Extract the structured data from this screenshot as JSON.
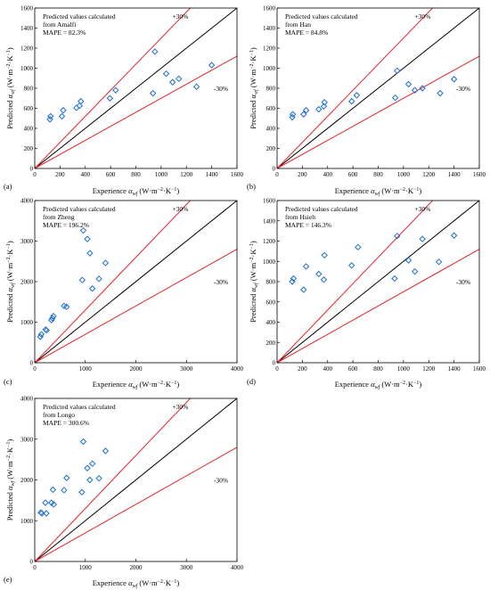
{
  "chart_data": [
    {
      "type": "scatter",
      "panel_label": "(a)",
      "annotation_lines": [
        "Predicted values calculated",
        "from Amalfi",
        "MAPE = 82.3%"
      ],
      "xlabel": {
        "prefix": "Experience ",
        "symbol": "α",
        "sub": "wf",
        "units": " (W·m",
        "exp1": "−2",
        "mid": "·K",
        "exp2": "−1",
        "close": ")"
      },
      "ylabel": {
        "prefix": "Predicted ",
        "symbol": "α",
        "sub": "wf",
        "units": " (W·m",
        "exp1": "−2",
        "mid": "·K",
        "exp2": "−1",
        "close": ")"
      },
      "xlim": [
        0,
        1600
      ],
      "ylim": [
        0,
        1600
      ],
      "xticks": [
        0,
        200,
        400,
        600,
        800,
        1000,
        1200,
        1400,
        1600
      ],
      "yticks": [
        0,
        200,
        400,
        600,
        800,
        1000,
        1200,
        1400,
        1600
      ],
      "reference_lines": [
        "+30%",
        "-30%"
      ],
      "points": [
        [
          120,
          490
        ],
        [
          125,
          520
        ],
        [
          215,
          520
        ],
        [
          225,
          580
        ],
        [
          330,
          605
        ],
        [
          355,
          625
        ],
        [
          365,
          670
        ],
        [
          595,
          700
        ],
        [
          640,
          780
        ],
        [
          935,
          750
        ],
        [
          950,
          1165
        ],
        [
          1040,
          945
        ],
        [
          1090,
          860
        ],
        [
          1140,
          895
        ],
        [
          1280,
          815
        ],
        [
          1400,
          1030
        ]
      ]
    },
    {
      "type": "scatter",
      "panel_label": "(b)",
      "annotation_lines": [
        "Predicted values calculated",
        "from Han",
        "MAPE = 84.8%"
      ],
      "xlabel": {
        "prefix": "Experience ",
        "symbol": "α",
        "sub": "wf",
        "units": " (W·m",
        "exp1": "−2",
        "mid": "·K",
        "exp2": "−1",
        "close": ")"
      },
      "ylabel": {
        "prefix": "Predicted ",
        "symbol": "α",
        "sub": "wf",
        "units": " (W·m",
        "exp1": "−2",
        "mid": "·K",
        "exp2": "−1",
        "close": ")"
      },
      "xlim": [
        0,
        1600
      ],
      "ylim": [
        0,
        1600
      ],
      "xticks": [
        0,
        200,
        400,
        600,
        800,
        1000,
        1200,
        1400,
        1600
      ],
      "yticks": [
        0,
        200,
        400,
        600,
        800,
        1000,
        1200,
        1400,
        1600
      ],
      "reference_lines": [
        "+30%",
        "-30%"
      ],
      "points": [
        [
          120,
          510
        ],
        [
          125,
          540
        ],
        [
          210,
          540
        ],
        [
          230,
          580
        ],
        [
          330,
          590
        ],
        [
          370,
          620
        ],
        [
          375,
          660
        ],
        [
          590,
          670
        ],
        [
          630,
          730
        ],
        [
          935,
          705
        ],
        [
          950,
          975
        ],
        [
          1040,
          840
        ],
        [
          1090,
          780
        ],
        [
          1150,
          800
        ],
        [
          1290,
          750
        ],
        [
          1400,
          890
        ]
      ]
    },
    {
      "type": "scatter",
      "panel_label": "(c)",
      "annotation_lines": [
        "Predicted values calculated",
        "from Zheng",
        "MAPE = 196.2%"
      ],
      "xlabel": {
        "prefix": "Experience ",
        "symbol": "α",
        "sub": "wf",
        "units": " (W·m",
        "exp1": "−2",
        "mid": "·K",
        "exp2": "−1",
        "close": ")"
      },
      "ylabel": {
        "prefix": "Predicted ",
        "symbol": "α",
        "sub": "wf",
        "units": " (W·m",
        "exp1": "−2",
        "mid": "·K",
        "exp2": "−1",
        "close": ")"
      },
      "xlim": [
        0,
        4000
      ],
      "ylim": [
        0,
        4000
      ],
      "xticks": [
        0,
        1000,
        2000,
        3000,
        4000
      ],
      "yticks": [
        0,
        1000,
        2000,
        3000,
        4000
      ],
      "reference_lines": [
        "+30%",
        "-30%"
      ],
      "points": [
        [
          110,
          640
        ],
        [
          130,
          700
        ],
        [
          215,
          820
        ],
        [
          235,
          800
        ],
        [
          330,
          1050
        ],
        [
          350,
          1100
        ],
        [
          370,
          1150
        ],
        [
          580,
          1400
        ],
        [
          630,
          1380
        ],
        [
          940,
          2040
        ],
        [
          960,
          3260
        ],
        [
          1040,
          3050
        ],
        [
          1090,
          2700
        ],
        [
          1140,
          1830
        ],
        [
          1270,
          2070
        ],
        [
          1400,
          2460
        ]
      ]
    },
    {
      "type": "scatter",
      "panel_label": "(d)",
      "annotation_lines": [
        "Predicted values calculated",
        "from Hsieh",
        "MAPE = 146.3%"
      ],
      "xlabel": {
        "prefix": "Experience ",
        "symbol": "α",
        "sub": "wf",
        "units": " (W·m",
        "exp1": "−2",
        "mid": "·K",
        "exp2": "−1",
        "close": ")"
      },
      "ylabel": {
        "prefix": "Predicted ",
        "symbol": "α",
        "sub": "wf",
        "units": " (W·m",
        "exp1": "−2",
        "mid": "·K",
        "exp2": "−1",
        "close": ")"
      },
      "xlim": [
        0,
        1600
      ],
      "ylim": [
        0,
        1600
      ],
      "xticks": [
        0,
        200,
        400,
        600,
        800,
        1000,
        1200,
        1400,
        1600
      ],
      "yticks": [
        0,
        200,
        400,
        600,
        800,
        1000,
        1200,
        1400,
        1600
      ],
      "reference_lines": [
        "+30%",
        "-30%"
      ],
      "points": [
        [
          120,
          800
        ],
        [
          130,
          830
        ],
        [
          210,
          720
        ],
        [
          230,
          950
        ],
        [
          330,
          875
        ],
        [
          370,
          820
        ],
        [
          375,
          1060
        ],
        [
          590,
          960
        ],
        [
          640,
          1140
        ],
        [
          930,
          830
        ],
        [
          950,
          1250
        ],
        [
          1040,
          1010
        ],
        [
          1090,
          900
        ],
        [
          1150,
          1220
        ],
        [
          1280,
          995
        ],
        [
          1400,
          1255
        ]
      ]
    },
    {
      "type": "scatter",
      "panel_label": "(e)",
      "annotation_lines": [
        "Predicted values calculated",
        "from  Longo",
        "MAPE = 300.6%"
      ],
      "xlabel": {
        "prefix": "Experience ",
        "symbol": "α",
        "sub": "wf",
        "units": " (W·m",
        "exp1": "−2",
        "mid": "·K",
        "exp2": "−1",
        "close": ")"
      },
      "ylabel": {
        "prefix": "Predicted ",
        "symbol": "α",
        "sub": "wf",
        "units": " (W·m",
        "exp1": "−2",
        "mid": "·K",
        "exp2": "−1",
        "close": ")"
      },
      "xlim": [
        0,
        4000
      ],
      "ylim": [
        0,
        4000
      ],
      "xticks": [
        0,
        1000,
        2000,
        3000,
        4000
      ],
      "yticks": [
        0,
        1000,
        2000,
        3000,
        4000
      ],
      "reference_lines": [
        "+30%",
        "-30%"
      ],
      "points": [
        [
          120,
          1200
        ],
        [
          140,
          1180
        ],
        [
          210,
          1440
        ],
        [
          230,
          1180
        ],
        [
          330,
          1440
        ],
        [
          360,
          1760
        ],
        [
          375,
          1400
        ],
        [
          580,
          1750
        ],
        [
          630,
          2050
        ],
        [
          930,
          1700
        ],
        [
          960,
          2940
        ],
        [
          1040,
          2290
        ],
        [
          1090,
          2000
        ],
        [
          1140,
          2400
        ],
        [
          1270,
          2040
        ],
        [
          1400,
          2710
        ]
      ]
    }
  ],
  "style": {
    "marker_color": "#1f6fd1",
    "diagonal_color": "#000000",
    "band_color": "#e8232a"
  }
}
